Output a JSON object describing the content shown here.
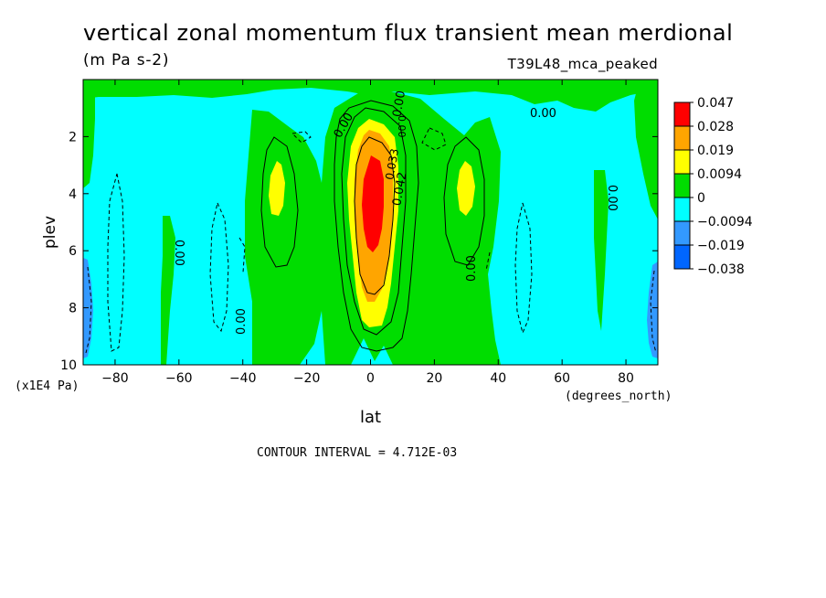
{
  "chart_data": {
    "type": "heatmap",
    "title": "vertical zonal momentum flux transient mean merdional",
    "units": "(m Pa s-2)",
    "run_id": "T39L48_mca_peaked",
    "xlabel": "lat",
    "x_units": "(degrees_north)",
    "ylabel": "plev",
    "y_units": "(x1E4 Pa)",
    "xlim": [
      -90,
      90
    ],
    "ylim": [
      10,
      0
    ],
    "x_ticks": [
      "-80",
      "-60",
      "-40",
      "-20",
      "0",
      "20",
      "40",
      "60",
      "80"
    ],
    "y_ticks": [
      "2",
      "4",
      "6",
      "8",
      "10"
    ],
    "contour_interval": "CONTOUR INTERVAL = 4.712E-03",
    "contour_labels": [
      "0.00",
      "0.00",
      "0.00",
      "0.00",
      "0.00",
      "0.00",
      "0.00",
      "0.00",
      "0.042",
      "0.033"
    ],
    "legend": {
      "position": "right",
      "levels": [
        {
          "label": "0.047",
          "color": "#ff0000"
        },
        {
          "label": "0.028",
          "color": "#ffa500"
        },
        {
          "label": "0.019",
          "color": "#ffff00"
        },
        {
          "label": "0.0094",
          "color": "#00dd00"
        },
        {
          "label": "0",
          "color": "#00ffff"
        },
        {
          "label": "-0.0094",
          "color": "#00ffff"
        },
        {
          "label": "-0.019",
          "color": "#3399ff"
        },
        {
          "label": "-0.038",
          "color": "#0066ff"
        }
      ],
      "swatches": [
        "#ff0000",
        "#ffa500",
        "#ffff00",
        "#00dd00",
        "#00ffff",
        "#3399ff",
        "#0066ff"
      ]
    },
    "regions": [
      {
        "kind": "positive band",
        "lat_range": [
          -10,
          12
        ],
        "plev_range": [
          1.3,
          9.3
        ],
        "max": 0.047,
        "max_at": {
          "lat": 0,
          "plev": 4
        }
      },
      {
        "kind": "positive lobe",
        "lat_range": [
          -36,
          -25
        ],
        "plev_range": [
          3.2,
          5.0
        ],
        "level": 0.0094
      },
      {
        "kind": "positive lobe",
        "lat_range": [
          24,
          35
        ],
        "plev_range": [
          3.2,
          5.0
        ],
        "level": 0.0094
      },
      {
        "kind": "negative edge",
        "lat_range": [
          -90,
          -86
        ],
        "plev_range": [
          6.5,
          9.8
        ],
        "level": -0.019
      },
      {
        "kind": "negative edge",
        "lat_range": [
          86,
          90
        ],
        "plev_range": [
          6.5,
          9.8
        ],
        "level": -0.019
      }
    ]
  }
}
